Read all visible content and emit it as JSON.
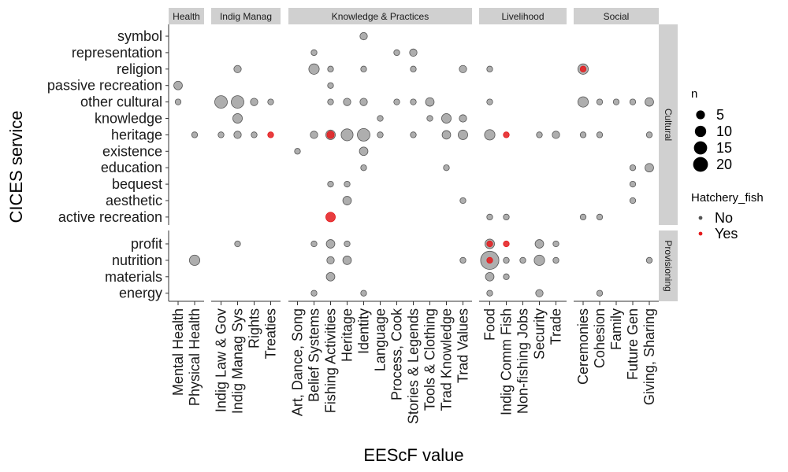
{
  "chart_data": {
    "type": "scatter",
    "xlabel": "EEScF value",
    "ylabel": "CICES service",
    "col_facets": [
      {
        "name": "Health",
        "categories": [
          "Mental Health",
          "Physical Health"
        ]
      },
      {
        "name": "Indig Manag",
        "categories": [
          "Indig Law & Gov",
          "Indig Manag Sys",
          "Rights",
          "Treaties"
        ]
      },
      {
        "name": "Knowledge & Practices",
        "categories": [
          "Art, Dance, Song",
          "Belief Systems",
          "Fishing Activities",
          "Heritage",
          "Identity",
          "Language",
          "Process, Cook",
          "Stories & Legends",
          "Tools & Clothing",
          "Trad Knowledge",
          "Trad Values"
        ]
      },
      {
        "name": "Livelihood",
        "categories": [
          "Food",
          "Indig Comm Fish",
          "Non-fishing Jobs",
          "Security",
          "Trade"
        ]
      },
      {
        "name": "Social",
        "categories": [
          "Ceremonies",
          "Cohesion",
          "Family",
          "Future Gen",
          "Giving, Sharing"
        ]
      }
    ],
    "row_facets": [
      {
        "name": "Cultural",
        "categories": [
          "symbol",
          "representation",
          "religion",
          "passive recreation",
          "other cultural",
          "knowledge",
          "heritage",
          "existence",
          "education",
          "bequest",
          "aesthetic",
          "active recreation"
        ]
      },
      {
        "name": "Provisioning",
        "categories": [
          "profit",
          "nutrition",
          "materials",
          "energy"
        ]
      }
    ],
    "legend": {
      "size": {
        "title": "n",
        "values": [
          5,
          10,
          15,
          20
        ]
      },
      "color": {
        "title": "Hatchery_fish",
        "entries": [
          {
            "label": "No",
            "color": "#555555"
          },
          {
            "label": "Yes",
            "color": "#e41a1c"
          }
        ]
      },
      "placement": "right"
    },
    "colors": {
      "no_fill": "#8c8c8c",
      "no_stroke": "#555555",
      "yes": "#e41a1c",
      "strip": "#d0d0d0"
    },
    "points": [
      {
        "x": "Mental Health",
        "y": "passive recreation",
        "n": 3,
        "h": "No"
      },
      {
        "x": "Mental Health",
        "y": "other cultural",
        "n": 1,
        "h": "No"
      },
      {
        "x": "Physical Health",
        "y": "heritage",
        "n": 1,
        "h": "No"
      },
      {
        "x": "Physical Health",
        "y": "nutrition",
        "n": 5,
        "h": "No"
      },
      {
        "x": "Indig Law & Gov",
        "y": "other cultural",
        "n": 8,
        "h": "No"
      },
      {
        "x": "Indig Law & Gov",
        "y": "heritage",
        "n": 1,
        "h": "No"
      },
      {
        "x": "Indig Manag Sys",
        "y": "religion",
        "n": 2,
        "h": "No"
      },
      {
        "x": "Indig Manag Sys",
        "y": "other cultural",
        "n": 8,
        "h": "No"
      },
      {
        "x": "Indig Manag Sys",
        "y": "knowledge",
        "n": 4,
        "h": "No"
      },
      {
        "x": "Indig Manag Sys",
        "y": "heritage",
        "n": 2,
        "h": "No"
      },
      {
        "x": "Indig Manag Sys",
        "y": "profit",
        "n": 1,
        "h": "No"
      },
      {
        "x": "Rights",
        "y": "other cultural",
        "n": 2,
        "h": "No"
      },
      {
        "x": "Rights",
        "y": "heritage",
        "n": 1,
        "h": "No"
      },
      {
        "x": "Treaties",
        "y": "other cultural",
        "n": 1,
        "h": "No"
      },
      {
        "x": "Treaties",
        "y": "heritage",
        "n": 1,
        "h": "Yes"
      },
      {
        "x": "Art, Dance, Song",
        "y": "existence",
        "n": 1,
        "h": "No"
      },
      {
        "x": "Belief Systems",
        "y": "representation",
        "n": 1,
        "h": "No"
      },
      {
        "x": "Belief Systems",
        "y": "religion",
        "n": 5,
        "h": "No"
      },
      {
        "x": "Belief Systems",
        "y": "heritage",
        "n": 2,
        "h": "No"
      },
      {
        "x": "Belief Systems",
        "y": "profit",
        "n": 1,
        "h": "No"
      },
      {
        "x": "Belief Systems",
        "y": "energy",
        "n": 1,
        "h": "No"
      },
      {
        "x": "Fishing Activities",
        "y": "religion",
        "n": 1,
        "h": "No"
      },
      {
        "x": "Fishing Activities",
        "y": "passive recreation",
        "n": 1,
        "h": "No"
      },
      {
        "x": "Fishing Activities",
        "y": "other cultural",
        "n": 1,
        "h": "No"
      },
      {
        "x": "Fishing Activities",
        "y": "heritage",
        "n": 4,
        "h": "No"
      },
      {
        "x": "Fishing Activities",
        "y": "heritage",
        "n": 2,
        "h": "Yes"
      },
      {
        "x": "Fishing Activities",
        "y": "bequest",
        "n": 1,
        "h": "No"
      },
      {
        "x": "Fishing Activities",
        "y": "active recreation",
        "n": 4,
        "h": "Yes"
      },
      {
        "x": "Fishing Activities",
        "y": "profit",
        "n": 3,
        "h": "No"
      },
      {
        "x": "Fishing Activities",
        "y": "nutrition",
        "n": 2,
        "h": "No"
      },
      {
        "x": "Fishing Activities",
        "y": "materials",
        "n": 3,
        "h": "No"
      },
      {
        "x": "Heritage",
        "y": "other cultural",
        "n": 2,
        "h": "No"
      },
      {
        "x": "Heritage",
        "y": "heritage",
        "n": 7,
        "h": "No"
      },
      {
        "x": "Heritage",
        "y": "bequest",
        "n": 1,
        "h": "No"
      },
      {
        "x": "Heritage",
        "y": "aesthetic",
        "n": 3,
        "h": "No"
      },
      {
        "x": "Heritage",
        "y": "profit",
        "n": 1,
        "h": "No"
      },
      {
        "x": "Heritage",
        "y": "nutrition",
        "n": 3,
        "h": "No"
      },
      {
        "x": "Identity",
        "y": "symbol",
        "n": 2,
        "h": "No"
      },
      {
        "x": "Identity",
        "y": "religion",
        "n": 1,
        "h": "No"
      },
      {
        "x": "Identity",
        "y": "other cultural",
        "n": 2,
        "h": "No"
      },
      {
        "x": "Identity",
        "y": "heritage",
        "n": 8,
        "h": "No"
      },
      {
        "x": "Identity",
        "y": "existence",
        "n": 3,
        "h": "No"
      },
      {
        "x": "Identity",
        "y": "education",
        "n": 1,
        "h": "No"
      },
      {
        "x": "Identity",
        "y": "energy",
        "n": 1,
        "h": "No"
      },
      {
        "x": "Language",
        "y": "knowledge",
        "n": 1,
        "h": "No"
      },
      {
        "x": "Language",
        "y": "heritage",
        "n": 1,
        "h": "No"
      },
      {
        "x": "Process, Cook",
        "y": "representation",
        "n": 1,
        "h": "No"
      },
      {
        "x": "Process, Cook",
        "y": "other cultural",
        "n": 1,
        "h": "No"
      },
      {
        "x": "Stories & Legends",
        "y": "representation",
        "n": 2,
        "h": "No"
      },
      {
        "x": "Stories & Legends",
        "y": "religion",
        "n": 1,
        "h": "No"
      },
      {
        "x": "Stories & Legends",
        "y": "other cultural",
        "n": 1,
        "h": "No"
      },
      {
        "x": "Stories & Legends",
        "y": "heritage",
        "n": 1,
        "h": "No"
      },
      {
        "x": "Tools & Clothing",
        "y": "other cultural",
        "n": 3,
        "h": "No"
      },
      {
        "x": "Tools & Clothing",
        "y": "knowledge",
        "n": 1,
        "h": "No"
      },
      {
        "x": "Trad Knowledge",
        "y": "knowledge",
        "n": 4,
        "h": "No"
      },
      {
        "x": "Trad Knowledge",
        "y": "heritage",
        "n": 3,
        "h": "No"
      },
      {
        "x": "Trad Knowledge",
        "y": "education",
        "n": 1,
        "h": "No"
      },
      {
        "x": "Trad Values",
        "y": "religion",
        "n": 2,
        "h": "No"
      },
      {
        "x": "Trad Values",
        "y": "knowledge",
        "n": 2,
        "h": "No"
      },
      {
        "x": "Trad Values",
        "y": "heritage",
        "n": 4,
        "h": "No"
      },
      {
        "x": "Trad Values",
        "y": "aesthetic",
        "n": 1,
        "h": "No"
      },
      {
        "x": "Trad Values",
        "y": "nutrition",
        "n": 1,
        "h": "No"
      },
      {
        "x": "Food",
        "y": "religion",
        "n": 1,
        "h": "No"
      },
      {
        "x": "Food",
        "y": "other cultural",
        "n": 1,
        "h": "No"
      },
      {
        "x": "Food",
        "y": "heritage",
        "n": 5,
        "h": "No"
      },
      {
        "x": "Food",
        "y": "active recreation",
        "n": 1,
        "h": "No"
      },
      {
        "x": "Food",
        "y": "profit",
        "n": 4,
        "h": "No"
      },
      {
        "x": "Food",
        "y": "profit",
        "n": 1,
        "h": "Yes"
      },
      {
        "x": "Food",
        "y": "nutrition",
        "n": 20,
        "h": "No"
      },
      {
        "x": "Food",
        "y": "nutrition",
        "n": 1,
        "h": "Yes"
      },
      {
        "x": "Food",
        "y": "materials",
        "n": 3,
        "h": "No"
      },
      {
        "x": "Food",
        "y": "energy",
        "n": 1,
        "h": "No"
      },
      {
        "x": "Indig Comm Fish",
        "y": "heritage",
        "n": 1,
        "h": "Yes"
      },
      {
        "x": "Indig Comm Fish",
        "y": "active recreation",
        "n": 1,
        "h": "No"
      },
      {
        "x": "Indig Comm Fish",
        "y": "profit",
        "n": 1,
        "h": "Yes"
      },
      {
        "x": "Indig Comm Fish",
        "y": "nutrition",
        "n": 1,
        "h": "No"
      },
      {
        "x": "Indig Comm Fish",
        "y": "materials",
        "n": 1,
        "h": "No"
      },
      {
        "x": "Non-fishing Jobs",
        "y": "nutrition",
        "n": 1,
        "h": "No"
      },
      {
        "x": "Security",
        "y": "heritage",
        "n": 1,
        "h": "No"
      },
      {
        "x": "Security",
        "y": "profit",
        "n": 3,
        "h": "No"
      },
      {
        "x": "Security",
        "y": "nutrition",
        "n": 5,
        "h": "No"
      },
      {
        "x": "Security",
        "y": "energy",
        "n": 2,
        "h": "No"
      },
      {
        "x": "Trade",
        "y": "heritage",
        "n": 2,
        "h": "No"
      },
      {
        "x": "Trade",
        "y": "profit",
        "n": 1,
        "h": "No"
      },
      {
        "x": "Trade",
        "y": "nutrition",
        "n": 1,
        "h": "No"
      },
      {
        "x": "Ceremonies",
        "y": "religion",
        "n": 5,
        "h": "No"
      },
      {
        "x": "Ceremonies",
        "y": "religion",
        "n": 1,
        "h": "Yes"
      },
      {
        "x": "Ceremonies",
        "y": "other cultural",
        "n": 5,
        "h": "No"
      },
      {
        "x": "Ceremonies",
        "y": "heritage",
        "n": 1,
        "h": "No"
      },
      {
        "x": "Ceremonies",
        "y": "active recreation",
        "n": 1,
        "h": "No"
      },
      {
        "x": "Cohesion",
        "y": "other cultural",
        "n": 1,
        "h": "No"
      },
      {
        "x": "Cohesion",
        "y": "heritage",
        "n": 1,
        "h": "No"
      },
      {
        "x": "Cohesion",
        "y": "active recreation",
        "n": 1,
        "h": "No"
      },
      {
        "x": "Cohesion",
        "y": "energy",
        "n": 1,
        "h": "No"
      },
      {
        "x": "Family",
        "y": "other cultural",
        "n": 1,
        "h": "No"
      },
      {
        "x": "Future Gen",
        "y": "other cultural",
        "n": 1,
        "h": "No"
      },
      {
        "x": "Future Gen",
        "y": "education",
        "n": 1,
        "h": "No"
      },
      {
        "x": "Future Gen",
        "y": "bequest",
        "n": 1,
        "h": "No"
      },
      {
        "x": "Future Gen",
        "y": "aesthetic",
        "n": 1,
        "h": "No"
      },
      {
        "x": "Giving, Sharing",
        "y": "other cultural",
        "n": 3,
        "h": "No"
      },
      {
        "x": "Giving, Sharing",
        "y": "heritage",
        "n": 1,
        "h": "No"
      },
      {
        "x": "Giving, Sharing",
        "y": "education",
        "n": 3,
        "h": "No"
      },
      {
        "x": "Giving, Sharing",
        "y": "nutrition",
        "n": 1,
        "h": "No"
      }
    ]
  }
}
